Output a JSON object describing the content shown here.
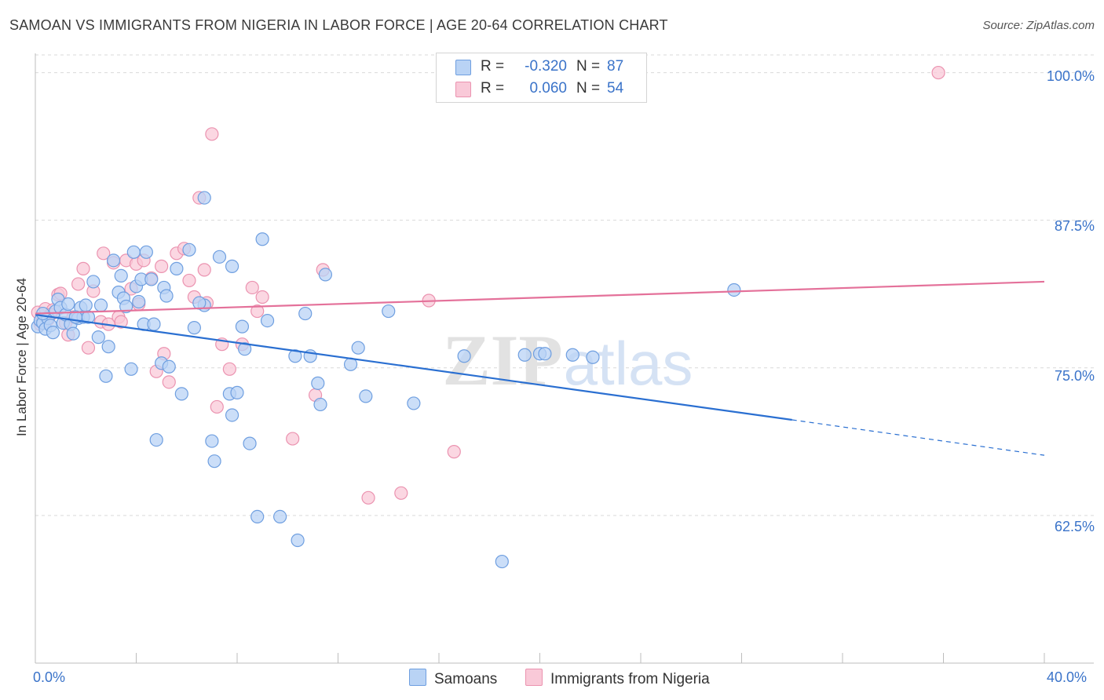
{
  "header": {
    "title": "SAMOAN VS IMMIGRANTS FROM NIGERIA IN LABOR FORCE | AGE 20-64 CORRELATION CHART",
    "source": "Source: ZipAtlas.com"
  },
  "watermark": {
    "zip": "ZIP",
    "atlas": "atlas"
  },
  "legend": {
    "rows": [
      {
        "r_label": "R =",
        "r_value": "-0.320",
        "n_label": "N =",
        "n_value": "87"
      },
      {
        "r_label": "R =",
        "r_value": "0.060",
        "n_label": "N =",
        "n_value": "54"
      }
    ]
  },
  "colors": {
    "samoans_fill": "#b9d3f5",
    "samoans_stroke": "#6f9fe0",
    "samoans_line": "#2a6fd1",
    "nigeria_fill": "#f9c9d8",
    "nigeria_stroke": "#eb93b0",
    "nigeria_line": "#e4719a",
    "tick_text": "#3a73c9",
    "grid": "#d9d9d9"
  },
  "chart_data": {
    "type": "scatter",
    "title": "SAMOAN VS IMMIGRANTS FROM NIGERIA IN LABOR FORCE | AGE 20-64 CORRELATION CHART",
    "xlabel": "",
    "ylabel": "In Labor Force | Age 20-64",
    "xlim": [
      0,
      40
    ],
    "ylim": [
      50,
      101.5
    ],
    "x_tick_labels": [
      "0.0%",
      "40.0%"
    ],
    "y_ticks": [
      62.5,
      75.0,
      87.5,
      100.0
    ],
    "y_tick_labels": [
      "62.5%",
      "75.0%",
      "87.5%",
      "100.0%"
    ],
    "grid": true,
    "legend_position": "top-center",
    "series": [
      {
        "name": "Samoans",
        "points": [
          [
            0.1,
            78.5
          ],
          [
            0.2,
            79.0
          ],
          [
            0.3,
            78.8
          ],
          [
            0.4,
            78.3
          ],
          [
            0.5,
            79.2
          ],
          [
            0.6,
            78.6
          ],
          [
            0.7,
            78.0
          ],
          [
            0.8,
            79.8
          ],
          [
            0.9,
            80.8
          ],
          [
            1.0,
            80.1
          ],
          [
            1.1,
            78.8
          ],
          [
            1.2,
            79.5
          ],
          [
            1.3,
            80.4
          ],
          [
            1.4,
            78.7
          ],
          [
            1.5,
            77.9
          ],
          [
            1.7,
            79.2
          ],
          [
            1.8,
            80.1
          ],
          [
            1.9,
            79.3
          ],
          [
            2.0,
            80.3
          ],
          [
            2.1,
            79.3
          ],
          [
            2.3,
            82.3
          ],
          [
            2.5,
            77.6
          ],
          [
            2.6,
            80.3
          ],
          [
            2.8,
            74.3
          ],
          [
            2.9,
            76.8
          ],
          [
            3.1,
            84.1
          ],
          [
            3.3,
            81.4
          ],
          [
            3.4,
            82.8
          ],
          [
            3.5,
            80.9
          ],
          [
            3.6,
            80.2
          ],
          [
            3.8,
            74.9
          ],
          [
            3.9,
            84.8
          ],
          [
            4.0,
            81.9
          ],
          [
            4.1,
            80.6
          ],
          [
            4.2,
            82.5
          ],
          [
            4.3,
            78.7
          ],
          [
            4.4,
            84.8
          ],
          [
            4.6,
            82.5
          ],
          [
            4.7,
            78.7
          ],
          [
            5.0,
            75.4
          ],
          [
            5.1,
            81.8
          ],
          [
            5.2,
            81.1
          ],
          [
            5.3,
            75.1
          ],
          [
            5.6,
            83.4
          ],
          [
            5.8,
            72.8
          ],
          [
            6.1,
            85.0
          ],
          [
            6.3,
            78.4
          ],
          [
            6.7,
            89.4
          ],
          [
            6.7,
            80.3
          ],
          [
            7.0,
            68.8
          ],
          [
            7.1,
            67.1
          ],
          [
            7.3,
            84.4
          ],
          [
            7.7,
            72.8
          ],
          [
            7.8,
            83.6
          ],
          [
            7.8,
            71.0
          ],
          [
            8.0,
            72.9
          ],
          [
            8.2,
            78.5
          ],
          [
            8.3,
            76.6
          ],
          [
            8.5,
            68.6
          ],
          [
            8.8,
            62.4
          ],
          [
            9.0,
            85.9
          ],
          [
            9.2,
            79.0
          ],
          [
            9.7,
            62.4
          ],
          [
            10.3,
            76.0
          ],
          [
            10.4,
            60.4
          ],
          [
            10.7,
            79.6
          ],
          [
            10.9,
            76.0
          ],
          [
            11.2,
            73.7
          ],
          [
            11.3,
            71.9
          ],
          [
            11.5,
            82.9
          ],
          [
            12.5,
            75.3
          ],
          [
            12.8,
            76.7
          ],
          [
            13.1,
            72.6
          ],
          [
            14.0,
            79.8
          ],
          [
            15.0,
            72.0
          ],
          [
            17.0,
            76.0
          ],
          [
            18.5,
            58.6
          ],
          [
            19.4,
            76.1
          ],
          [
            20.0,
            76.2
          ],
          [
            20.2,
            76.2
          ],
          [
            21.3,
            76.1
          ],
          [
            22.1,
            75.9
          ],
          [
            27.7,
            81.6
          ],
          [
            4.8,
            68.9
          ],
          [
            1.6,
            79.3
          ],
          [
            0.3,
            79.6
          ],
          [
            6.5,
            80.5
          ]
        ]
      },
      {
        "name": "Immigrants from Nigeria",
        "points": [
          [
            0.1,
            79.7
          ],
          [
            0.2,
            78.7
          ],
          [
            0.4,
            80.0
          ],
          [
            0.5,
            79.1
          ],
          [
            0.7,
            79.9
          ],
          [
            0.9,
            81.2
          ],
          [
            1.0,
            81.3
          ],
          [
            1.2,
            78.8
          ],
          [
            1.3,
            77.8
          ],
          [
            1.5,
            79.3
          ],
          [
            1.7,
            82.1
          ],
          [
            1.9,
            83.4
          ],
          [
            2.1,
            76.7
          ],
          [
            2.3,
            81.5
          ],
          [
            2.6,
            78.9
          ],
          [
            2.7,
            84.7
          ],
          [
            2.9,
            78.7
          ],
          [
            3.1,
            83.9
          ],
          [
            3.3,
            79.3
          ],
          [
            3.4,
            78.9
          ],
          [
            3.6,
            84.1
          ],
          [
            3.8,
            81.7
          ],
          [
            4.0,
            83.8
          ],
          [
            4.1,
            80.4
          ],
          [
            4.3,
            84.1
          ],
          [
            4.6,
            82.6
          ],
          [
            4.8,
            74.7
          ],
          [
            5.0,
            83.6
          ],
          [
            5.1,
            76.2
          ],
          [
            5.3,
            73.8
          ],
          [
            5.6,
            84.7
          ],
          [
            5.9,
            85.1
          ],
          [
            6.1,
            82.4
          ],
          [
            6.3,
            81.0
          ],
          [
            6.5,
            89.4
          ],
          [
            6.8,
            80.5
          ],
          [
            7.0,
            94.8
          ],
          [
            7.2,
            71.7
          ],
          [
            7.4,
            77.0
          ],
          [
            7.7,
            74.9
          ],
          [
            8.2,
            77.0
          ],
          [
            8.6,
            81.8
          ],
          [
            8.8,
            79.8
          ],
          [
            9.0,
            81.0
          ],
          [
            10.2,
            69.0
          ],
          [
            11.1,
            72.7
          ],
          [
            11.4,
            83.3
          ],
          [
            13.2,
            64.0
          ],
          [
            14.5,
            64.4
          ],
          [
            15.6,
            80.7
          ],
          [
            16.6,
            67.9
          ],
          [
            35.8,
            100.0
          ],
          [
            6.7,
            83.3
          ],
          [
            0.6,
            79.5
          ]
        ]
      }
    ],
    "trend_lines": [
      {
        "series": "Samoans",
        "from": [
          0,
          79.5
        ],
        "to": [
          30.0,
          70.6
        ],
        "dashed_to": [
          40,
          67.6
        ]
      },
      {
        "series": "Immigrants from Nigeria",
        "from": [
          0,
          79.6
        ],
        "to": [
          40,
          82.3
        ]
      }
    ]
  },
  "bottom_legend": {
    "samoans": "Samoans",
    "nigeria": "Immigrants from Nigeria"
  }
}
